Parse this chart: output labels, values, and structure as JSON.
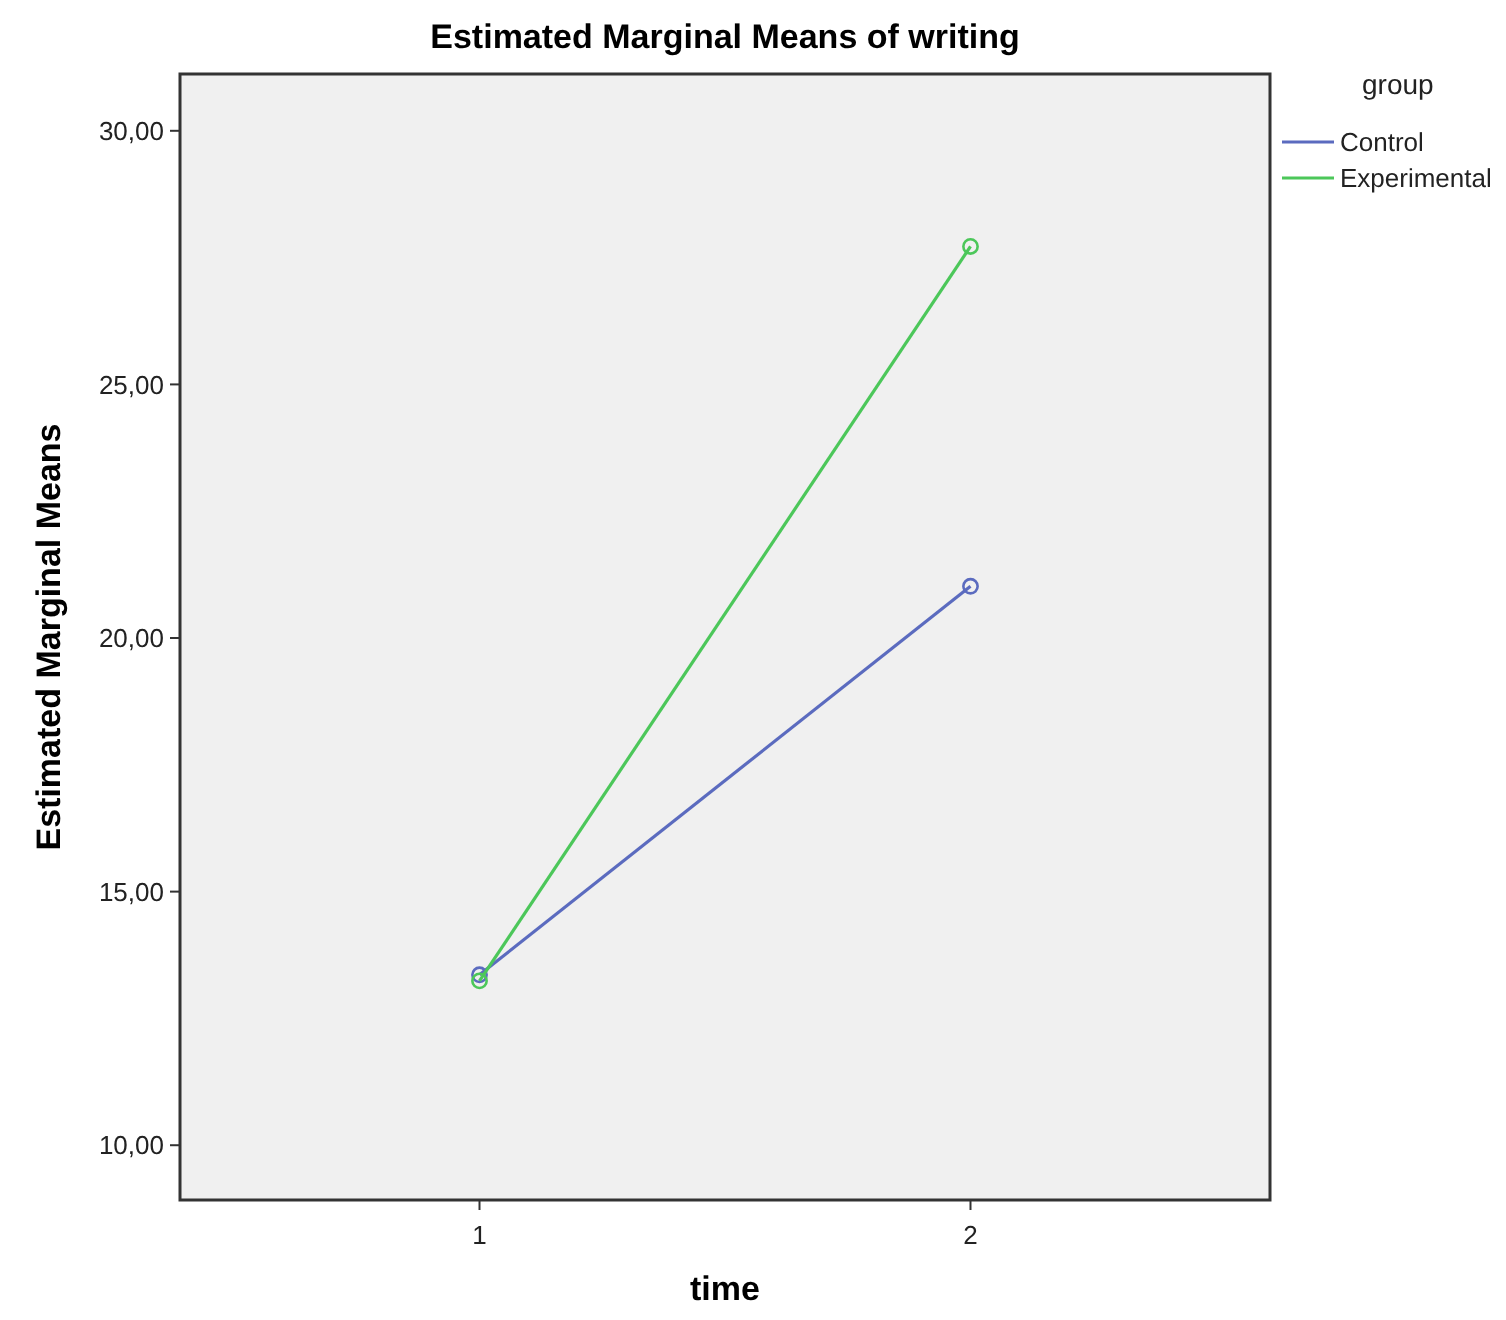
{
  "chart_data": {
    "type": "line",
    "title": "Estimated Marginal Means of writing",
    "xlabel": "time",
    "ylabel": "Estimated Marginal Means",
    "legend_title": "group",
    "categories": [
      "1",
      "2"
    ],
    "series": [
      {
        "name": "Control",
        "color": "#5b6bbf",
        "values": [
          13.36,
          21.02
        ]
      },
      {
        "name": "Experimental",
        "color": "#4cc75a",
        "values": [
          13.24,
          27.72
        ]
      }
    ],
    "ylim": [
      8.92,
      31.12
    ],
    "yticks": [
      {
        "value": 10,
        "label": "10,00"
      },
      {
        "value": 15,
        "label": "15,00"
      },
      {
        "value": 20,
        "label": "20,00"
      },
      {
        "value": 25,
        "label": "25,00"
      },
      {
        "value": 30,
        "label": "30,00"
      }
    ],
    "marker": "circle",
    "legend": "top right",
    "grid": false
  }
}
